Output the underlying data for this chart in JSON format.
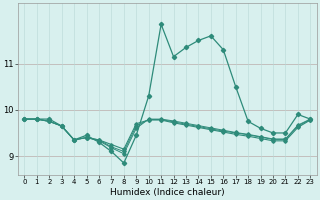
{
  "xlabel": "Humidex (Indice chaleur)",
  "x_values": [
    0,
    1,
    2,
    3,
    4,
    5,
    6,
    7,
    8,
    9,
    10,
    11,
    12,
    13,
    14,
    15,
    16,
    17,
    18,
    19,
    20,
    21,
    22,
    23
  ],
  "line1": [
    9.8,
    9.8,
    9.8,
    9.65,
    9.35,
    9.45,
    9.3,
    9.1,
    8.85,
    9.45,
    10.3,
    11.85,
    11.15,
    11.35,
    11.5,
    11.6,
    11.3,
    10.5,
    9.75,
    9.6,
    9.5,
    9.5,
    9.9,
    9.8
  ],
  "line2": [
    9.8,
    9.8,
    9.75,
    9.65,
    9.35,
    9.4,
    9.35,
    9.25,
    9.15,
    9.7,
    9.78,
    9.78,
    9.72,
    9.67,
    9.62,
    9.57,
    9.52,
    9.47,
    9.43,
    9.38,
    9.33,
    9.33,
    9.62,
    9.78
  ],
  "line3": [
    9.8,
    9.8,
    9.75,
    9.65,
    9.35,
    9.4,
    9.35,
    9.2,
    9.1,
    9.65,
    9.79,
    9.79,
    9.74,
    9.69,
    9.64,
    9.59,
    9.54,
    9.5,
    9.46,
    9.41,
    9.36,
    9.36,
    9.65,
    9.79
  ],
  "line4": [
    9.8,
    9.8,
    9.75,
    9.65,
    9.35,
    9.4,
    9.33,
    9.18,
    9.05,
    9.6,
    9.8,
    9.8,
    9.76,
    9.71,
    9.66,
    9.61,
    9.56,
    9.51,
    9.47,
    9.42,
    9.37,
    9.37,
    9.67,
    9.8
  ],
  "line_color": "#2e8b7a",
  "bg_color": "#d8f0ee",
  "grid_color": "#b8d8d6",
  "red_line_color": "#d08080",
  "ylim": [
    8.6,
    12.3
  ],
  "yticks": [
    9,
    10,
    11
  ],
  "xlim": [
    -0.5,
    23.5
  ],
  "xticks": [
    0,
    1,
    2,
    3,
    4,
    5,
    6,
    7,
    8,
    9,
    10,
    11,
    12,
    13,
    14,
    15,
    16,
    17,
    18,
    19,
    20,
    21,
    22,
    23
  ]
}
